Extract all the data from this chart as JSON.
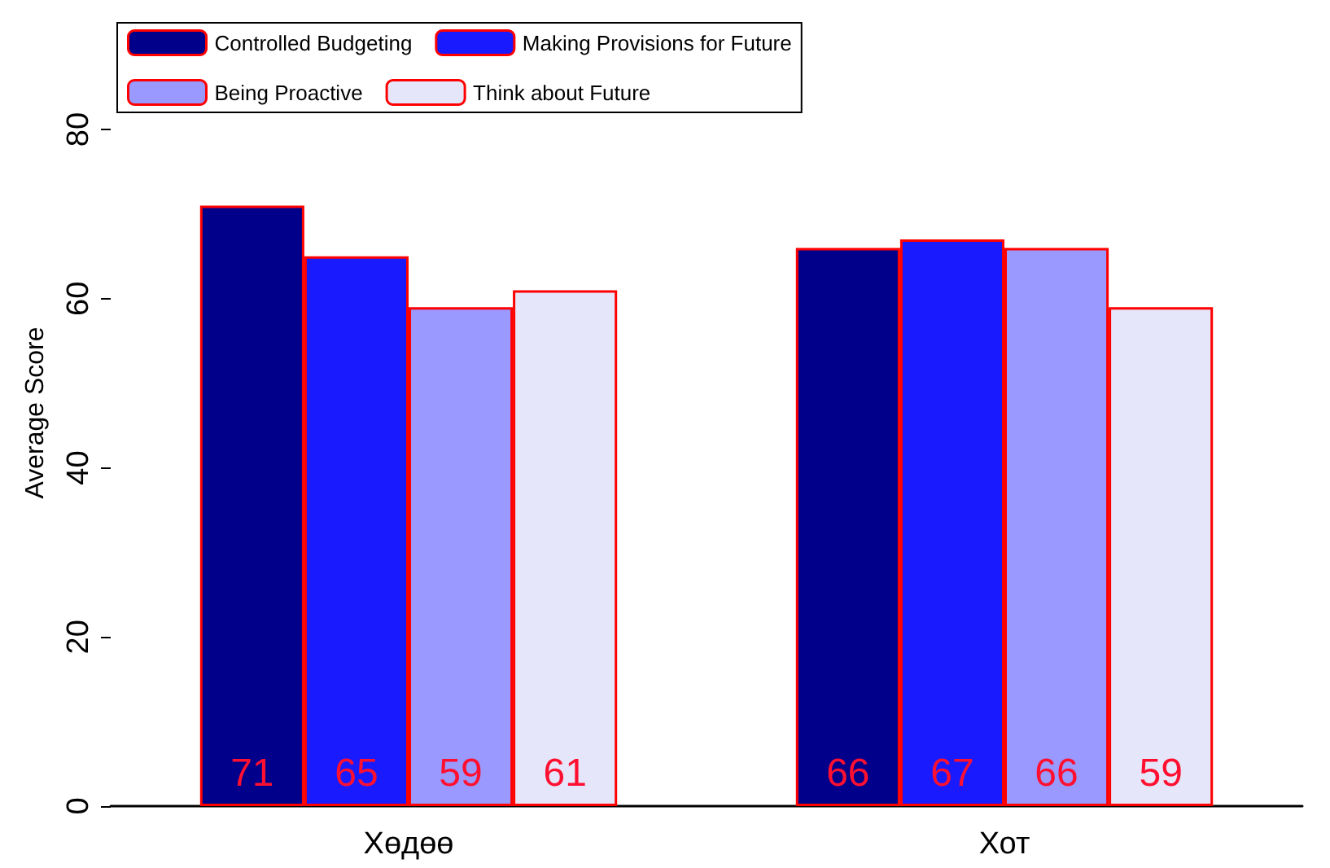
{
  "chart_data": {
    "type": "bar",
    "ylabel": "Average Score",
    "categories": [
      "Хөдөө",
      "Хот"
    ],
    "series": [
      {
        "name": "Controlled Budgeting",
        "color": "#00008b",
        "values": [
          71,
          66
        ]
      },
      {
        "name": "Making Provisions for Future",
        "color": "#1a1aff",
        "values": [
          65,
          67
        ]
      },
      {
        "name": "Being Proactive",
        "color": "#9999ff",
        "values": [
          59,
          66
        ]
      },
      {
        "name": "Think about Future",
        "color": "#e6e6fa",
        "values": [
          61,
          59
        ]
      }
    ],
    "ylim": [
      0,
      93
    ],
    "yticks": [
      0,
      20,
      40,
      60,
      80
    ],
    "grid": false,
    "legend": "top left",
    "data_labels": true
  }
}
